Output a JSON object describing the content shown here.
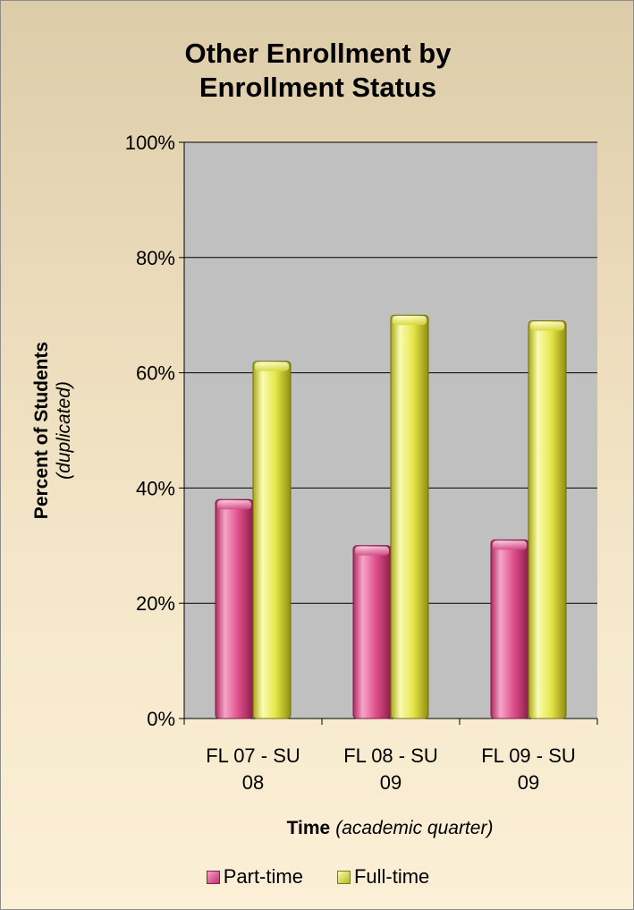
{
  "chart_data": {
    "type": "bar",
    "title_lines": [
      "Other Enrollment by",
      "Enrollment Status"
    ],
    "categories": [
      [
        "FL 07 - SU",
        "08"
      ],
      [
        "FL 08 - SU",
        "09"
      ],
      [
        "FL 09 - SU",
        "09"
      ]
    ],
    "series": [
      {
        "name": "Part-time",
        "values": [
          38,
          30,
          31
        ],
        "color": "#e0508c"
      },
      {
        "name": "Full-time",
        "values": [
          62,
          70,
          69
        ],
        "color": "#e6e64a"
      }
    ],
    "ylim": [
      0,
      100
    ],
    "y_ticks": [
      0,
      20,
      40,
      60,
      80,
      100
    ],
    "y_tick_labels": [
      "0%",
      "20%",
      "40%",
      "60%",
      "80%",
      "100%"
    ],
    "ylabel": {
      "main": "Percent of Students",
      "sub": "(duplicated)"
    },
    "xlabel": {
      "main": "Time",
      "sub": "(academic quarter)"
    },
    "plot_background": "#c0c0c0",
    "gridlines": true,
    "legend_position": "bottom"
  }
}
